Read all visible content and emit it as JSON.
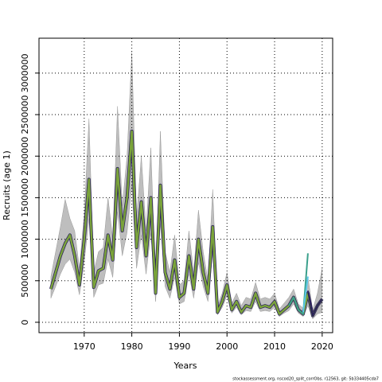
{
  "chart_data": {
    "type": "line",
    "xlabel": "Years",
    "ylabel": "Recruits (age 1)",
    "footer": "stockassessment.org, nscod20_split_corrObs, r12563, git: 5b334405cda7",
    "xlim": [
      1960.5,
      2022.2
    ],
    "ylim": [
      -125000,
      3420000
    ],
    "xticks": [
      1970,
      1980,
      1990,
      2000,
      2010,
      2020
    ],
    "yticks": [
      0,
      500000,
      1000000,
      1500000,
      2000000,
      2500000,
      3000000
    ],
    "grid": true,
    "x": [
      1963,
      1964,
      1965,
      1966,
      1967,
      1968,
      1969,
      1970,
      1971,
      1972,
      1973,
      1974,
      1975,
      1976,
      1977,
      1978,
      1979,
      1980,
      1981,
      1982,
      1983,
      1984,
      1985,
      1986,
      1987,
      1988,
      1989,
      1990,
      1991,
      1992,
      1993,
      1994,
      1995,
      1996,
      1997,
      1998,
      1999,
      2000,
      2001,
      2002,
      2003,
      2004,
      2005,
      2006,
      2007,
      2008,
      2009,
      2010,
      2011,
      2012,
      2013,
      2014,
      2015,
      2016,
      2017,
      2018,
      2019,
      2020
    ],
    "band": {
      "color": "#bebebe",
      "upper": [
        550000,
        850000,
        1150000,
        1480000,
        1250000,
        1100000,
        650000,
        1300000,
        2450000,
        600000,
        850000,
        900000,
        1500000,
        1000000,
        2600000,
        1400000,
        2000000,
        3250000,
        1250000,
        2000000,
        1100000,
        2100000,
        500000,
        2300000,
        850000,
        600000,
        1050000,
        450000,
        500000,
        1100000,
        600000,
        1350000,
        850000,
        500000,
        1600000,
        200000,
        350000,
        600000,
        230000,
        350000,
        200000,
        300000,
        280000,
        480000,
        280000,
        300000,
        280000,
        350000,
        160000,
        230000,
        300000,
        400000,
        220000,
        170000,
        550000,
        150000,
        350000,
        650000
      ],
      "lower": [
        290000,
        430000,
        580000,
        700000,
        760000,
        600000,
        330000,
        720000,
        1250000,
        300000,
        450000,
        470000,
        760000,
        540000,
        1330000,
        800000,
        1080000,
        1650000,
        650000,
        1050000,
        580000,
        1080000,
        250000,
        1190000,
        430000,
        290000,
        540000,
        220000,
        250000,
        580000,
        290000,
        720000,
        430000,
        250000,
        830000,
        90000,
        180000,
        320000,
        110000,
        180000,
        90000,
        140000,
        130000,
        250000,
        130000,
        140000,
        130000,
        180000,
        70000,
        110000,
        140000,
        220000,
        110000,
        70000,
        200000,
        40000,
        100000,
        120000
      ]
    },
    "series": [
      {
        "color": "#7aa33a",
        "values": [
          400000,
          600000,
          800000,
          950000,
          1050000,
          800000,
          450000,
          1000000,
          1720000,
          420000,
          620000,
          650000,
          1050000,
          750000,
          1850000,
          1100000,
          1500000,
          2300000,
          900000,
          1450000,
          800000,
          1500000,
          350000,
          1650000,
          600000,
          400000,
          750000,
          300000,
          350000,
          800000,
          400000,
          1000000,
          600000,
          350000,
          1150000,
          120000,
          250000,
          450000,
          150000,
          250000,
          120000,
          200000,
          180000,
          350000,
          180000,
          200000,
          180000,
          250000,
          100000,
          150000,
          200000,
          300000,
          150000,
          100000,
          350000,
          80000,
          200000,
          280000
        ]
      },
      {
        "color": "#3aa08c",
        "x": [
          2013,
          2014,
          2015,
          2016,
          2017
        ],
        "values": [
          200000,
          300000,
          150000,
          100000,
          830000
        ]
      },
      {
        "color": "#5bc8e8",
        "x": [
          2016,
          2017
        ],
        "values": [
          120000,
          550000
        ]
      },
      {
        "color": "#2a1f5c",
        "x": [
          2017,
          2018,
          2019,
          2020
        ],
        "values": [
          380000,
          80000,
          200000,
          280000
        ]
      }
    ]
  }
}
